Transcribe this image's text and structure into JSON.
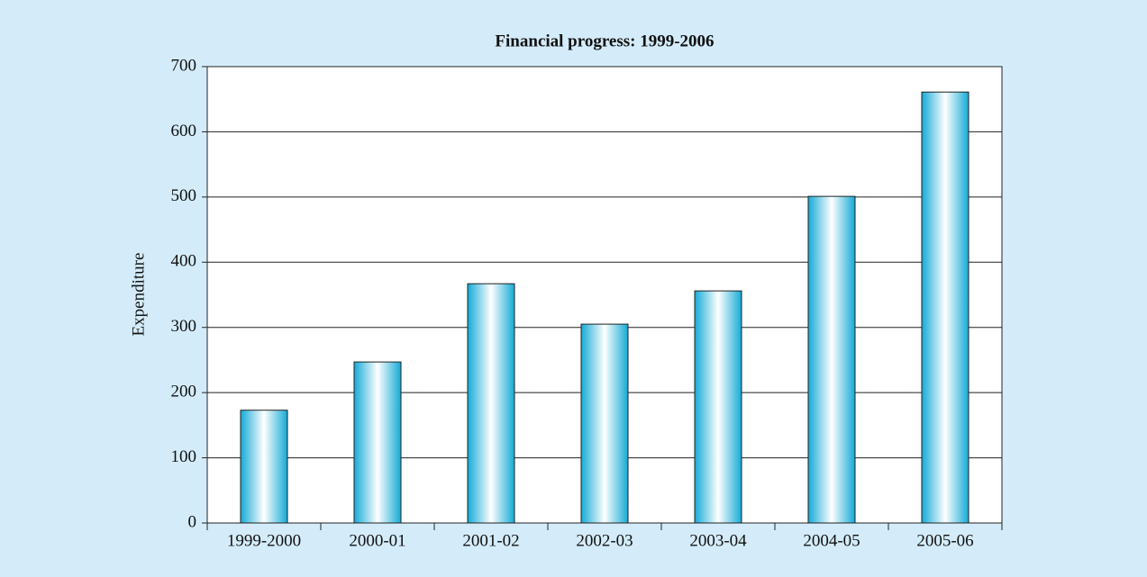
{
  "chart_data": {
    "type": "bar",
    "title": "Financial progress: 1999-2006",
    "y_label": "Expenditure",
    "categories": [
      "1999-2000",
      "2000-01",
      "2001-02",
      "2002-03",
      "2003-04",
      "2004-05",
      "2005-06"
    ],
    "values": [
      173,
      247,
      367,
      305,
      356,
      501,
      661
    ],
    "color": "#1ab4dc",
    "ylim": [
      0,
      700
    ],
    "yticks": [
      0,
      100,
      200,
      300,
      400,
      500,
      600,
      700
    ],
    "grid": true
  }
}
